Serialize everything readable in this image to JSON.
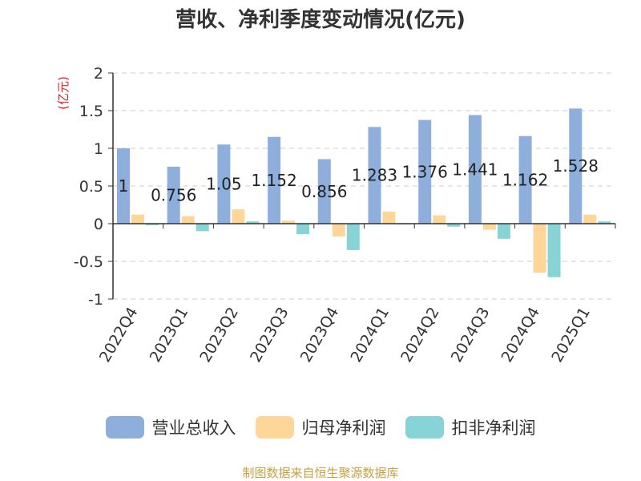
{
  "chart_data": {
    "type": "bar",
    "title": "营收、净利季度变动情况(亿元)",
    "unit_label": "(亿元)",
    "categories": [
      "2022Q4",
      "2023Q1",
      "2023Q2",
      "2023Q3",
      "2023Q4",
      "2024Q1",
      "2024Q2",
      "2024Q3",
      "2024Q4",
      "2025Q1"
    ],
    "series": [
      {
        "name": "营业总收入",
        "color": "#8eaedc",
        "values": [
          1,
          0.756,
          1.05,
          1.152,
          0.856,
          1.283,
          1.376,
          1.441,
          1.162,
          1.528
        ],
        "labels": [
          "1",
          "0.756",
          "1.05",
          "1.152",
          "0.856",
          "1.283",
          "1.376",
          "1.441",
          "1.162",
          "1.528"
        ]
      },
      {
        "name": "归母净利润",
        "color": "#fdd698",
        "values": [
          0.12,
          0.1,
          0.19,
          0.04,
          -0.17,
          0.16,
          0.11,
          -0.08,
          -0.65,
          0.12
        ]
      },
      {
        "name": "扣非净利润",
        "color": "#86d4d6",
        "values": [
          -0.02,
          -0.1,
          0.03,
          -0.14,
          -0.35,
          -0.01,
          -0.04,
          -0.2,
          -0.71,
          0.03
        ]
      }
    ],
    "y_ticks": [
      "2",
      "1.5",
      "1",
      "0.5",
      "0",
      "-0.5",
      "-1"
    ],
    "ylim": [
      -1,
      2
    ],
    "grid": true,
    "legend_position": "bottom"
  },
  "source_note": "制图数据来自恒生聚源数据库"
}
